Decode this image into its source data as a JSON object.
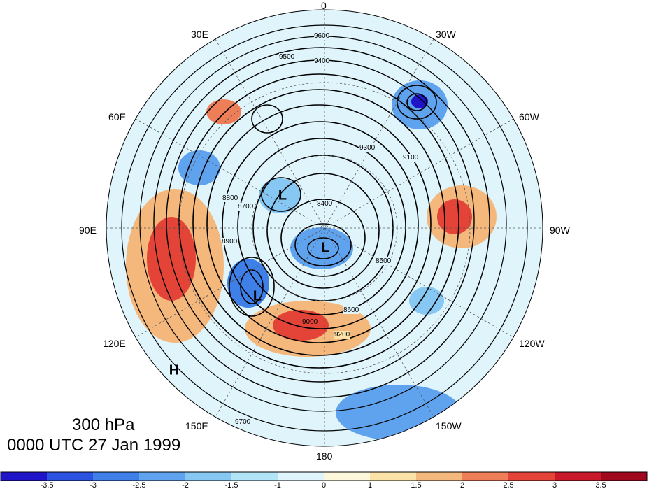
{
  "map": {
    "level_label": "300 hPa",
    "time_label": "0000 UTC 27 Jan 1999",
    "longitude_labels": {
      "lon_0": "0",
      "lon_30w": "30W",
      "lon_60w": "60W",
      "lon_90w": "90W",
      "lon_120w": "120W",
      "lon_150w": "150W",
      "lon_180": "180",
      "lon_150e": "150E",
      "lon_120e": "120E",
      "lon_90e": "90E",
      "lon_60e": "60E",
      "lon_30e": "30E"
    },
    "pressure_systems": {
      "low_1": "L",
      "low_2": "L",
      "low_3": "L",
      "high_1": "H"
    },
    "contour_labels": [
      "9600",
      "9500",
      "9400",
      "9300",
      "9200",
      "9100",
      "9000",
      "8900",
      "8800",
      "8700",
      "8600",
      "8500",
      "8400",
      "9700"
    ]
  },
  "colorbar": {
    "ticks": [
      "-3.5",
      "-3",
      "-2.5",
      "-2",
      "-1.5",
      "-1",
      "0",
      "1",
      "1.5",
      "2",
      "2.5",
      "3",
      "3.5"
    ],
    "colors": [
      "#1f14c8",
      "#2c52e0",
      "#3e7fe8",
      "#5fa3ef",
      "#86c7f4",
      "#b2e4f8",
      "#dff4fb",
      "#fdf7dc",
      "#fbe3a7",
      "#f5b87c",
      "#ee7e57",
      "#e44437",
      "#c8182a",
      "#a0081e"
    ]
  }
}
